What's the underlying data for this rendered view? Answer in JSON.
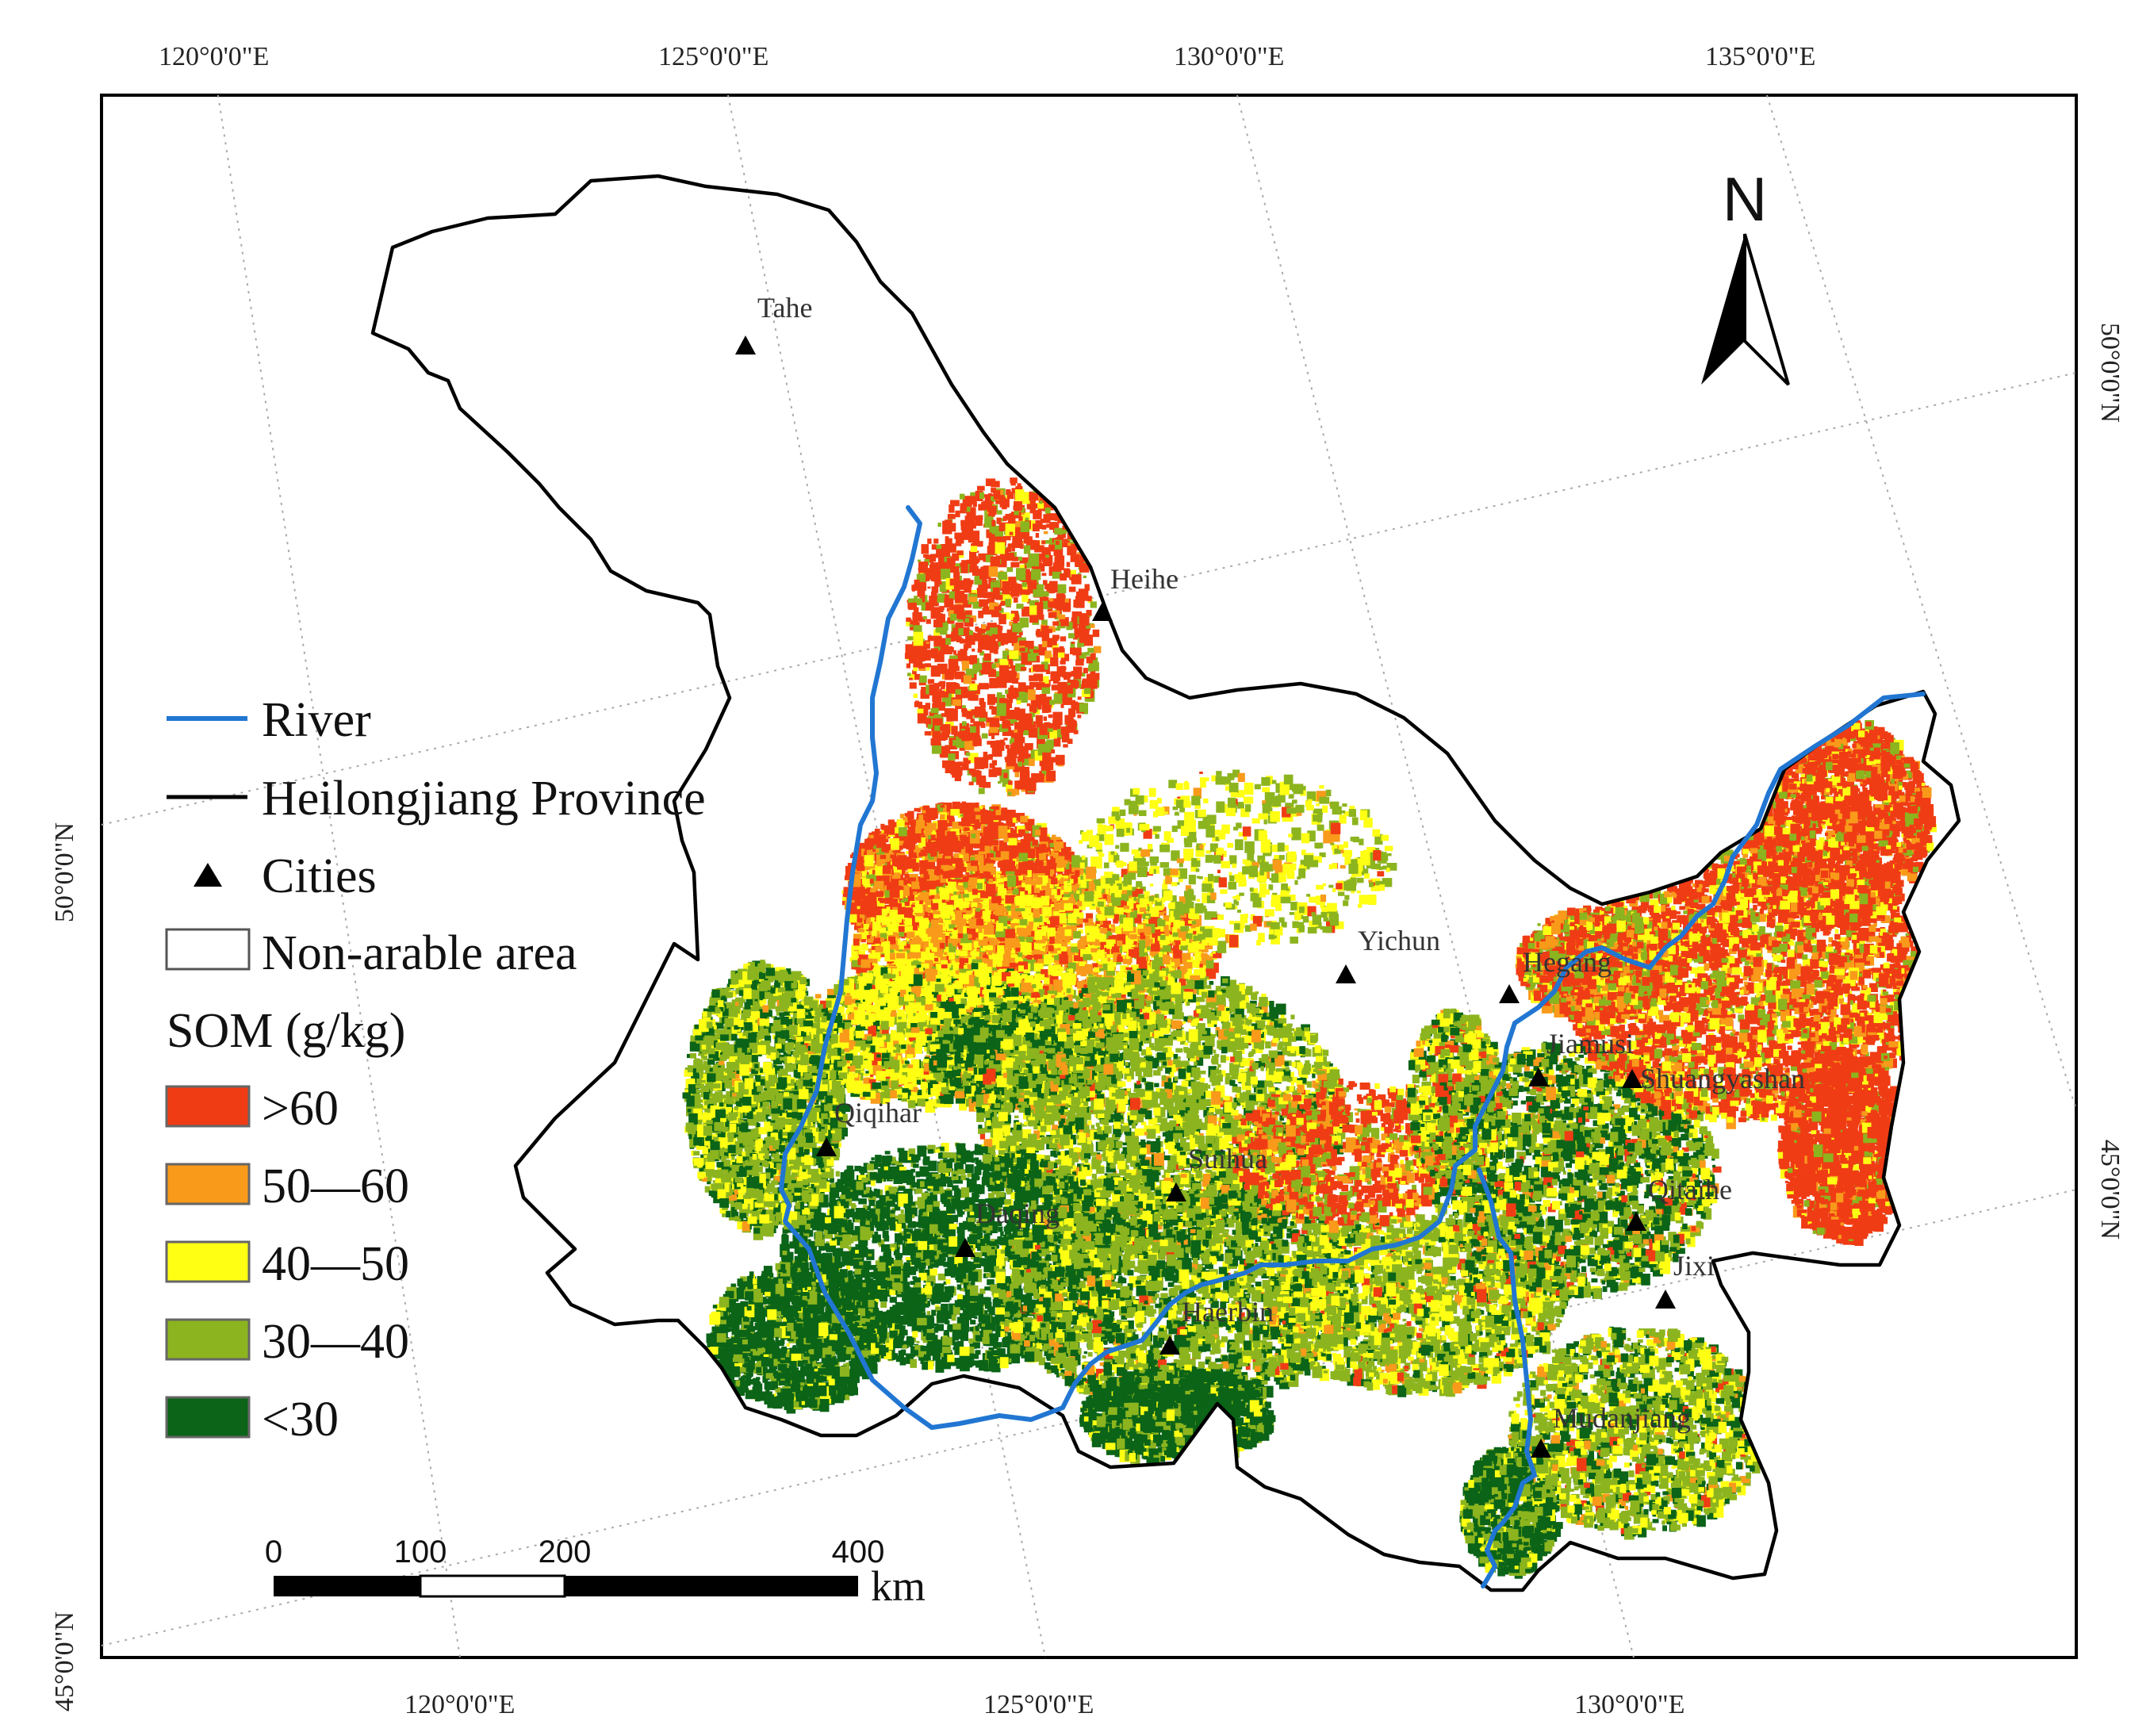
{
  "graticule": {
    "top": [
      "120°0'0\"E",
      "125°0'0\"E",
      "130°0'0\"E",
      "135°0'0\"E"
    ],
    "bottom": [
      "120°0'0\"E",
      "125°0'0\"E",
      "130°0'0\"E"
    ],
    "left": [
      "50°0'0\"N",
      "45°0'0\"N"
    ],
    "right": [
      "50°0'0\"N",
      "45°0'0\"N"
    ]
  },
  "north_arrow": {
    "label": "N"
  },
  "cities": [
    "Tahe",
    "Heihe",
    "Yichun",
    "Hegang",
    "Jiamusi",
    "Shuangyashan",
    "Qiqihar",
    "Suihua",
    "Daqing",
    "Qitaihe",
    "Jixi",
    "Haerbin",
    "Mudanjiang"
  ],
  "legend": {
    "river": "River",
    "province": "Heilongjiang Province",
    "cities": "Cities",
    "non_arable": "Non-arable area",
    "som_title": "SOM (g/kg)",
    "classes": [
      {
        "label": ">60",
        "color": "#f03c14"
      },
      {
        "label": "50—60",
        "color": "#f99a1a"
      },
      {
        "label": "40—50",
        "color": "#ffff14"
      },
      {
        "label": "30—40",
        "color": "#8cb41e"
      },
      {
        "label": "<30",
        "color": "#0b6417"
      }
    ]
  },
  "scale_bar": {
    "ticks": [
      "0",
      "100",
      "200",
      "400"
    ],
    "unit": "km"
  },
  "colors": {
    "river": "#2176d2",
    "boundary": "#000000",
    "non_arable": "#ffffff"
  }
}
